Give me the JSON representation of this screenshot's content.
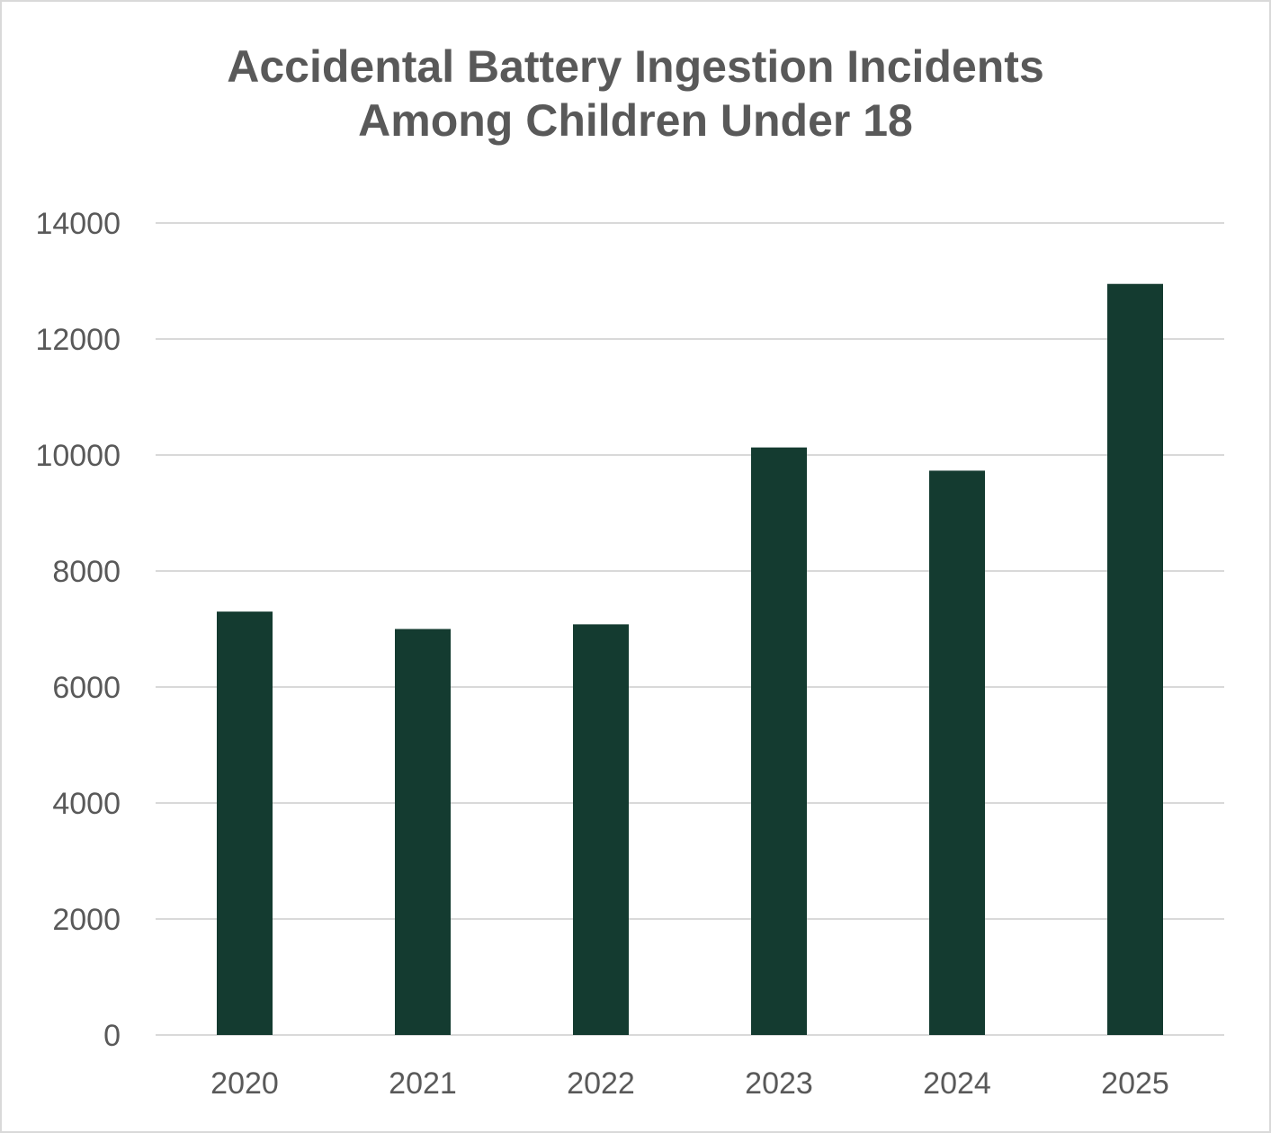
{
  "chart_data": {
    "type": "bar",
    "title_lines": [
      "Accidental Battery Ingestion Incidents",
      "Among Children Under 18"
    ],
    "categories": [
      "2020",
      "2021",
      "2022",
      "2023",
      "2024",
      "2025"
    ],
    "values": [
      7300,
      7000,
      7080,
      10130,
      9730,
      12950
    ],
    "xlabel": "",
    "ylabel": "",
    "ylim": [
      0,
      14000
    ],
    "yticks": [
      0,
      2000,
      4000,
      6000,
      8000,
      10000,
      12000,
      14000
    ],
    "grid": true,
    "legend": "none",
    "bar_color": "#143b30"
  }
}
